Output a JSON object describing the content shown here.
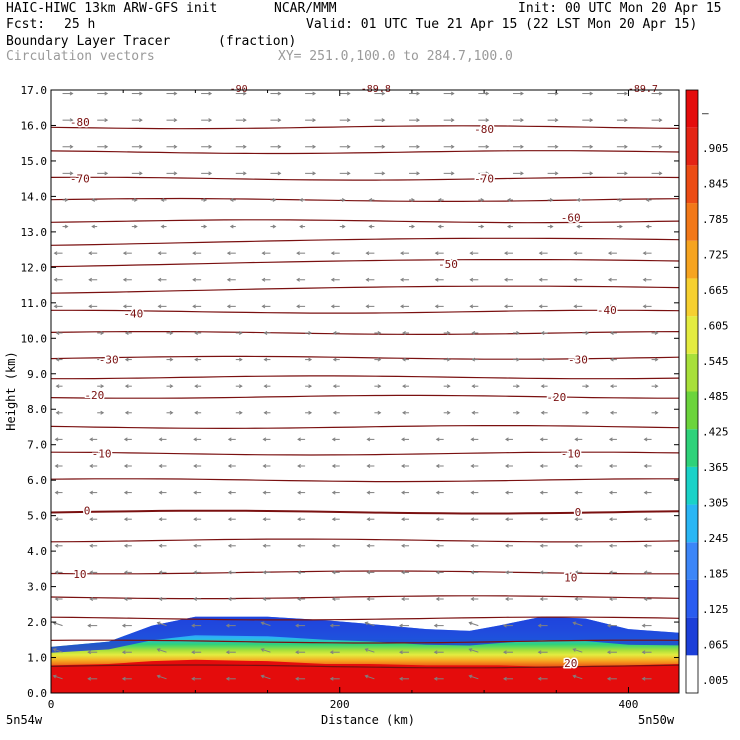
{
  "header": {
    "model_title": "HAIC-HIWC 13km ARW-GFS init",
    "org": "NCAR/MMM",
    "init": "Init: 00 UTC Mon 20 Apr 15",
    "fcst_label": "Fcst:",
    "fcst_value": "25 h",
    "valid": "Valid: 01 UTC Tue 21 Apr 15 (22 LST Mon 20 Apr 15)",
    "field_name": "Boundary Layer Tracer",
    "field_units": "(fraction)",
    "overlay_name": "Circulation vectors",
    "xy_range": "XY= 251.0,100.0 to 284.7,100.0"
  },
  "colors": {
    "contour": "#7a1010",
    "vector": "#808080",
    "colorbar": [
      "#ffffff",
      "#1c3fd8",
      "#2a5cf0",
      "#3c86f8",
      "#2ab6f4",
      "#1ad2c8",
      "#2ed27a",
      "#6cd43c",
      "#a8e03a",
      "#e4ec40",
      "#f6d030",
      "#f6a420",
      "#f27818",
      "#ec4c14",
      "#e42414",
      "#e40c0c"
    ]
  },
  "chart_data": {
    "type": "contour",
    "title": "Boundary Layer Tracer",
    "xlabel": "Distance (km)",
    "ylabel": "Height (km)",
    "xlim": [
      0,
      435
    ],
    "ylim": [
      0,
      17
    ],
    "x_ticks": [
      0,
      200,
      400
    ],
    "y_ticks": [
      "0.0",
      "1.0",
      "2.0",
      "3.0",
      "4.0",
      "5.0",
      "6.0",
      "7.0",
      "8.0",
      "9.0",
      "10.0",
      "11.0",
      "12.0",
      "13.0",
      "14.0",
      "15.0",
      "16.0",
      "17.0"
    ],
    "x_endpoint_left": "5n54w",
    "x_endpoint_right": "5n50w",
    "colorbar_labels": [
      ".005",
      ".065",
      ".125",
      ".185",
      ".245",
      ".305",
      ".365",
      ".425",
      ".485",
      ".545",
      ".605",
      ".665",
      ".725",
      ".785",
      ".845",
      ".905",
      "–"
    ],
    "tracer_top": [
      {
        "x": 0,
        "top": 1.3,
        "core": 1.0
      },
      {
        "x": 40,
        "top": 1.45,
        "core": 1.05
      },
      {
        "x": 70,
        "top": 1.9,
        "core": 1.15
      },
      {
        "x": 100,
        "top": 2.15,
        "core": 1.2
      },
      {
        "x": 150,
        "top": 2.15,
        "core": 1.15
      },
      {
        "x": 190,
        "top": 2.05,
        "core": 1.05
      },
      {
        "x": 220,
        "top": 1.95,
        "core": 1.05
      },
      {
        "x": 260,
        "top": 1.8,
        "core": 1.0
      },
      {
        "x": 290,
        "top": 1.75,
        "core": 1.0
      },
      {
        "x": 310,
        "top": 1.9,
        "core": 1.0
      },
      {
        "x": 340,
        "top": 2.15,
        "core": 0.95
      },
      {
        "x": 370,
        "top": 2.1,
        "core": 0.95
      },
      {
        "x": 400,
        "top": 1.8,
        "core": 1.0
      },
      {
        "x": 435,
        "top": 1.7,
        "core": 1.05
      }
    ],
    "contour_labels": [
      {
        "value": "-80",
        "x": 20,
        "y": 16.1
      },
      {
        "value": "-80",
        "x": 300,
        "y": 15.9
      },
      {
        "value": "-70",
        "x": 20,
        "y": 14.5
      },
      {
        "value": "-70",
        "x": 300,
        "y": 14.5
      },
      {
        "value": "-60",
        "x": 360,
        "y": 13.4
      },
      {
        "value": "-50",
        "x": 275,
        "y": 12.1
      },
      {
        "value": "-40",
        "x": 57,
        "y": 10.7
      },
      {
        "value": "-40",
        "x": 385,
        "y": 10.8
      },
      {
        "value": "-30",
        "x": 40,
        "y": 9.4
      },
      {
        "value": "-30",
        "x": 365,
        "y": 9.4
      },
      {
        "value": "-20",
        "x": 30,
        "y": 8.4
      },
      {
        "value": "-20",
        "x": 350,
        "y": 8.35
      },
      {
        "value": "-10",
        "x": 35,
        "y": 6.75
      },
      {
        "value": "-10",
        "x": 360,
        "y": 6.75
      },
      {
        "value": "0",
        "x": 25,
        "y": 5.15
      },
      {
        "value": "0",
        "x": 365,
        "y": 5.1
      },
      {
        "value": "10",
        "x": 20,
        "y": 3.35
      },
      {
        "value": "10",
        "x": 360,
        "y": 3.25
      },
      {
        "value": "20",
        "x": 360,
        "y": 0.85
      }
    ],
    "top_partial_labels": [
      {
        "value": "-90",
        "x": 130
      },
      {
        "value": "-89.8",
        "x": 225
      },
      {
        "value": "-89.7",
        "x": 410
      }
    ]
  }
}
